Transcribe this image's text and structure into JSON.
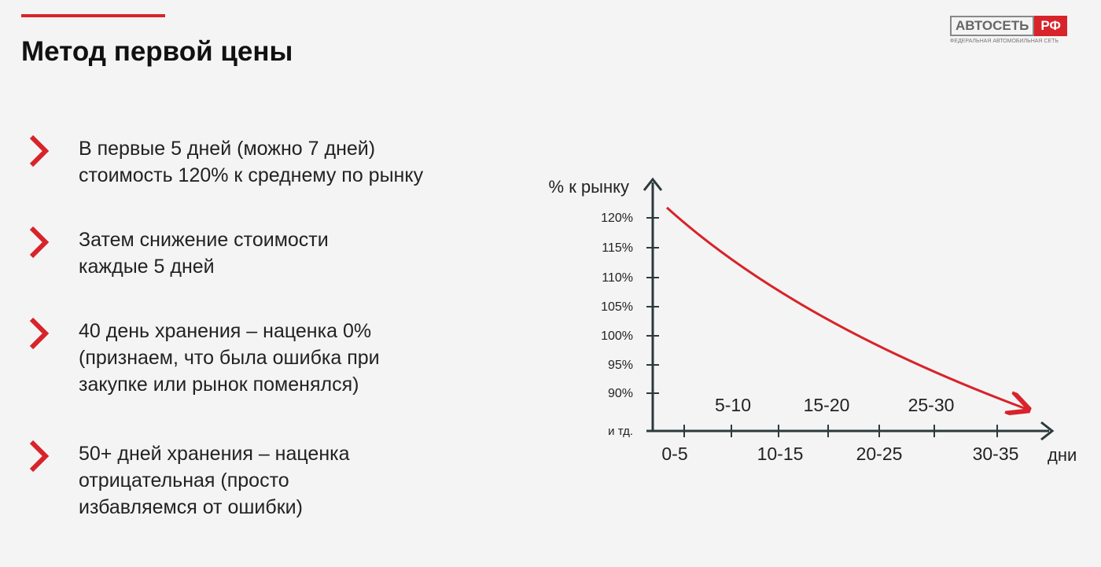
{
  "header": {
    "title": "Метод первой цены"
  },
  "logo": {
    "name": "АВТОСЕТЬ",
    "suffix": "РФ",
    "tagline": "ФЕДЕРАЛЬНАЯ АВТОМОБИЛЬНАЯ СЕТЬ"
  },
  "bullets": [
    [
      "В первые 5 дней (можно 7 дней)",
      "стоимость 120% к среднему по рынку"
    ],
    [
      "Затем снижение стоимости",
      "каждые 5 дней"
    ],
    [
      "40 день хранения – наценка 0%",
      "(признаем, что была ошибка при",
      "закупке или рынок поменялся)"
    ],
    [
      "50+ дней хранения – наценка",
      "отрицательная (просто",
      "избавляемся от ошибки)"
    ]
  ],
  "diagram": {
    "y_label": "% к рынку",
    "x_label": "дни",
    "y_labels": [
      "120%",
      "115%",
      "110%",
      "105%",
      "100%",
      "95%",
      "90%",
      "и тд."
    ],
    "x_labels": [
      "0-5",
      "5-10",
      "10-15",
      "15-20",
      "20-25",
      "25-30",
      "30-35"
    ]
  }
}
